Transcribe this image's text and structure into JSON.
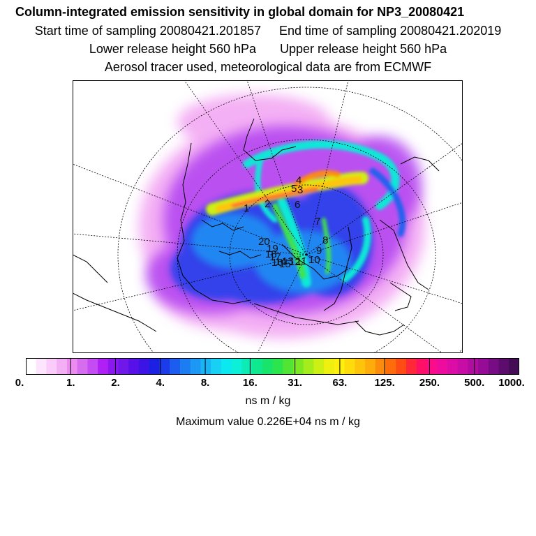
{
  "titles": {
    "line1": "Column-integrated emission sensitivity in global domain for NP3_20080421",
    "start": "Start time of sampling 20080421.201857",
    "end": "End time of sampling 20080421.202019",
    "lower": "Lower release height  560 hPa",
    "upper": "Upper release height  560 hPa",
    "line4": "Aerosol tracer used, meteorological data are from ECMWF"
  },
  "chart_data": {
    "type": "heatmap",
    "title": "Column-integrated emission sensitivity in global domain for NP3_20080421",
    "projection": "north polar stereographic",
    "colorbar": {
      "ticks": [
        "0.",
        "1.",
        "2.",
        "4.",
        "8.",
        "16.",
        "31.",
        "63.",
        "125.",
        "250.",
        "500.",
        "1000."
      ],
      "colors": [
        "#ffffff",
        "#fde6fd",
        "#f9ccf9",
        "#f3aff3",
        "#ec8cf0",
        "#d66cee",
        "#c44cf2",
        "#b020f5",
        "#8c18f0",
        "#7018ea",
        "#5810e8",
        "#3c14e6",
        "#1c20e4",
        "#1c3cea",
        "#1c5cee",
        "#1c7cf2",
        "#1c98f4",
        "#18b4f4",
        "#18d0f4",
        "#0ce8f0",
        "#0cf0d8",
        "#0cecb4",
        "#10e890",
        "#18e46c",
        "#2ce44c",
        "#50e434",
        "#7ce824",
        "#a4ec1c",
        "#ccf014",
        "#eef010",
        "#fef00c",
        "#fedc0c",
        "#fec40c",
        "#feac0c",
        "#fe8c0c",
        "#fe6c0c",
        "#fe4c14",
        "#fe2838",
        "#fe1066",
        "#fa0c8a",
        "#ee0c9e",
        "#dc0ca6",
        "#c80ca6",
        "#b00ca0",
        "#960c96",
        "#780c84",
        "#5c0c6c",
        "#440c54"
      ],
      "units": "ns m / kg"
    },
    "max_value_text": "Maximum value  0.226E+04 ns m / kg",
    "release_labels": [
      "1",
      "2",
      "3",
      "4",
      "5",
      "6",
      "7",
      "8",
      "9",
      "10",
      "11",
      "12",
      "13",
      "14",
      "15",
      "16",
      "17",
      "18",
      "19",
      "20"
    ]
  }
}
